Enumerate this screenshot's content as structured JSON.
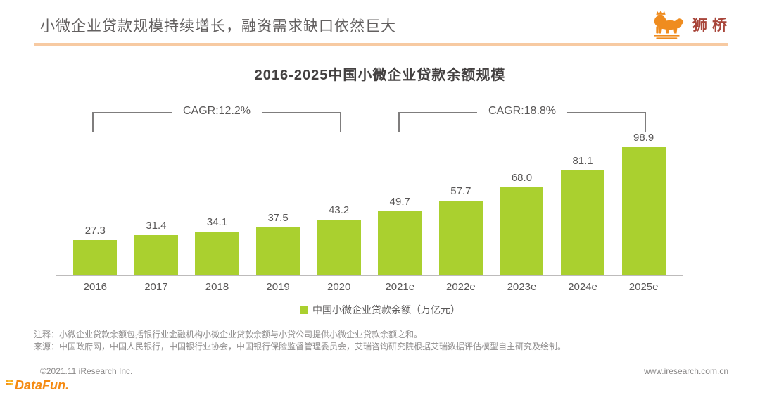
{
  "header": {
    "title": "小微企业贷款规模持续增长，融资需求缺口依然巨大",
    "logo": {
      "name": "狮桥",
      "icon": "lion-icon"
    }
  },
  "chart": {
    "title": "2016-2025中国小微企业贷款余额规模",
    "cagr_left_label": "CAGR:12.2%",
    "cagr_right_label": "CAGR:18.8%",
    "legend_label": "中国小微企业贷款余额（万亿元）",
    "bar_color": "#aad02f"
  },
  "chart_data": {
    "type": "bar",
    "title": "2016-2025中国小微企业贷款余额规模",
    "categories": [
      "2016",
      "2017",
      "2018",
      "2019",
      "2020",
      "2021e",
      "2022e",
      "2023e",
      "2024e",
      "2025e"
    ],
    "values": [
      27.3,
      31.4,
      34.1,
      37.5,
      43.2,
      49.7,
      57.7,
      68.0,
      81.1,
      98.9
    ],
    "value_labels": [
      "27.3",
      "31.4",
      "34.1",
      "37.5",
      "43.2",
      "49.7",
      "57.7",
      "68.0",
      "81.1",
      "98.9"
    ],
    "xlabel": "",
    "ylabel": "万亿元",
    "ylim": [
      0,
      105
    ],
    "grid": false,
    "legend": [
      "中国小微企业贷款余额（万亿元）"
    ],
    "legend_position": "bottom",
    "bar_color": "#aad02f",
    "annotations": [
      {
        "label": "CAGR:12.2%",
        "from": "2016",
        "to": "2020"
      },
      {
        "label": "CAGR:18.8%",
        "from": "2021e",
        "to": "2025e"
      }
    ]
  },
  "notes": {
    "note_line": "注释：小微企业贷款余额包括银行业金融机构小微企业贷款余额与小贷公司提供小微企业贷款余额之和。",
    "source_line": "来源：中国政府网，中国人民银行，中国银行业协会，中国银行保险监督管理委员会，艾瑞咨询研究院根据艾瑞数据评估模型自主研究及绘制。"
  },
  "footer": {
    "copyright": "©2021.11 iResearch Inc.",
    "website": "www.iresearch.com.cn",
    "datafun_logo": "DataFun."
  }
}
